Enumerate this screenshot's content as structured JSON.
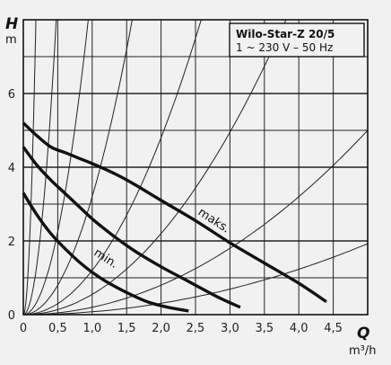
{
  "chart_data": {
    "type": "line",
    "title": "Wilo-Star-Z 20/5",
    "subtitle": "1 ~ 230 V – 50 Hz",
    "xlabel": "Q",
    "xunit": "m³/h",
    "ylabel": "H",
    "yunit": "m",
    "xlim": [
      0,
      5.0
    ],
    "ylim": [
      0,
      8.0
    ],
    "x_ticks": [
      "0",
      "0,5",
      "1,0",
      "1,5",
      "2,0",
      "2,5",
      "3,0",
      "3,5",
      "4,0",
      "4,5"
    ],
    "y_ticks": [
      "0",
      "2",
      "4",
      "6"
    ],
    "grid": true,
    "series": [
      {
        "name": "maks.",
        "x": [
          0.0,
          0.2,
          0.4,
          0.6,
          0.8,
          1.0,
          1.3,
          1.6,
          2.0,
          2.5,
          3.0,
          3.5,
          4.0,
          4.4
        ],
        "y": [
          5.2,
          4.85,
          4.55,
          4.4,
          4.25,
          4.1,
          3.85,
          3.55,
          3.1,
          2.55,
          1.95,
          1.4,
          0.85,
          0.35
        ]
      },
      {
        "name": "",
        "x": [
          0.0,
          0.2,
          0.4,
          0.6,
          0.8,
          1.0,
          1.3,
          1.6,
          2.0,
          2.4,
          2.8,
          3.15
        ],
        "y": [
          4.55,
          4.05,
          3.65,
          3.3,
          2.95,
          2.6,
          2.15,
          1.75,
          1.3,
          0.9,
          0.5,
          0.2
        ]
      },
      {
        "name": "min.",
        "x": [
          0.0,
          0.2,
          0.4,
          0.6,
          0.8,
          1.0,
          1.2,
          1.5,
          1.8,
          2.1,
          2.4
        ],
        "y": [
          3.3,
          2.7,
          2.2,
          1.8,
          1.45,
          1.15,
          0.9,
          0.6,
          0.35,
          0.2,
          0.1
        ]
      }
    ],
    "system_curves_k": [
      240,
      35,
      9,
      3.2,
      1.2,
      0.55,
      0.2,
      0.077
    ]
  }
}
